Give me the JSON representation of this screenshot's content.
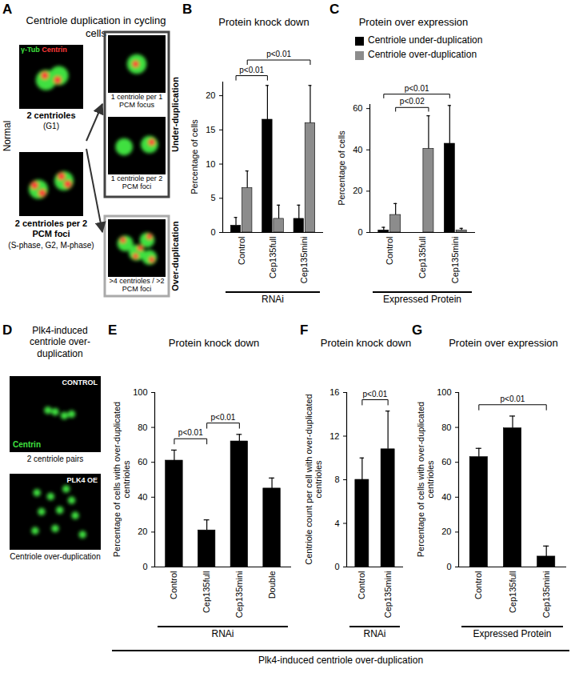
{
  "figure": {
    "panel_A": {
      "letter": "A",
      "title": "Centriole duplication in cycling cells",
      "stain_labels": [
        {
          "text": "γ-Tub",
          "color": "#3fe03f"
        },
        {
          "text": "Centrin",
          "color": "#ff3a3a"
        }
      ],
      "normal_label": "Normal",
      "normal_images": [
        {
          "caption": "2 centrioles",
          "phase": "(G1)"
        },
        {
          "caption": "2 centrioles per 2 PCM foci",
          "phase": "(S-phase, G2, M-phase)"
        }
      ],
      "under_label": "Under-duplication",
      "under_images": [
        "1 centriole per 1 PCM focus",
        "1 centriole per 2 PCM foci"
      ],
      "over_label": "Over-duplication",
      "over_images": [
        ">4 centrioles / >2 PCM foci"
      ]
    },
    "panel_D": {
      "letter": "D",
      "title": "Plk4-induced centriole over-duplication",
      "stain_label": {
        "text": "Centrin",
        "color": "#3fe03f"
      },
      "images": [
        {
          "tag": "CONTROL",
          "caption": "2 centriole pairs"
        },
        {
          "tag": "PLK4 OE",
          "caption": "Centriole over-duplication"
        }
      ]
    },
    "bottom_label": "Plk4-induced centriole over-duplication"
  },
  "chart_data": [
    {
      "panel": "B",
      "type": "bar",
      "title": "Protein knock down",
      "ylabel": "Percentage of cells",
      "group_label": "RNAi",
      "categories": [
        "Control",
        "Cep135full",
        "Cep135mini"
      ],
      "series": [
        {
          "name": "Centriole under-duplication",
          "color": "#000000",
          "values": [
            1,
            16.5,
            2
          ],
          "errors": [
            1.2,
            5,
            2
          ]
        },
        {
          "name": "Centriole over-duplication",
          "color": "#8c8c8c",
          "values": [
            6.5,
            2,
            16
          ],
          "errors": [
            2.5,
            2,
            5.5
          ]
        }
      ],
      "ylim": [
        0,
        22
      ],
      "yticks": [
        0,
        5,
        10,
        15,
        20
      ],
      "annotations": [
        {
          "label": "p<0.01",
          "from": "Control",
          "to": "Cep135full",
          "series": "Centriole under-duplication"
        },
        {
          "label": "p<0.01",
          "from": "Control",
          "to": "Cep135mini",
          "series": "Centriole over-duplication"
        }
      ]
    },
    {
      "panel": "C",
      "type": "bar",
      "title": "Protein over expression",
      "ylabel": "Percentage of cells",
      "group_label": "Expressed Protein",
      "categories": [
        "Control",
        "Cep135full",
        "Cep135mini"
      ],
      "series": [
        {
          "name": "Centriole under-duplication",
          "color": "#000000",
          "values": [
            1,
            0,
            43
          ],
          "errors": [
            1.5,
            0,
            18.5
          ]
        },
        {
          "name": "Centriole over-duplication",
          "color": "#8c8c8c",
          "values": [
            8.5,
            40.5,
            1
          ],
          "errors": [
            5.5,
            16,
            1
          ]
        }
      ],
      "ylim": [
        0,
        62
      ],
      "yticks": [
        0,
        20,
        40,
        60
      ],
      "legend": "top-right",
      "annotations": [
        {
          "label": "p<0.02",
          "from": "Control",
          "to": "Cep135full",
          "series": "Centriole over-duplication"
        },
        {
          "label": "p<0.01",
          "from": "Control",
          "to": "Cep135mini",
          "series": "Centriole under-duplication"
        }
      ]
    },
    {
      "panel": "E",
      "type": "bar",
      "title": "Protein knock down",
      "ylabel": "Percentage of cells with over-duplicated centrioles",
      "group_label": "RNAi",
      "categories": [
        "Control",
        "Cep135full",
        "Cep135mini",
        "Double"
      ],
      "values": [
        61,
        21,
        72,
        45
      ],
      "errors": [
        6,
        6,
        4,
        6
      ],
      "color": "#000000",
      "ylim": [
        0,
        100
      ],
      "yticks": [
        0,
        20,
        40,
        60,
        80,
        100
      ],
      "annotations": [
        {
          "label": "p<0.01",
          "from": "Control",
          "to": "Cep135full"
        },
        {
          "label": "p<0.01",
          "from": "Cep135full",
          "to": "Cep135mini"
        }
      ]
    },
    {
      "panel": "F",
      "type": "bar",
      "title": "Protein knock down",
      "ylabel": "Centriole count per cell with over-duplicated centrioles",
      "group_label": "RNAi",
      "categories": [
        "Control",
        "Cep135mini"
      ],
      "values": [
        8,
        10.8
      ],
      "errors": [
        2,
        3.5
      ],
      "color": "#000000",
      "ylim": [
        0,
        16
      ],
      "yticks": [
        0,
        4,
        8,
        12,
        16
      ],
      "annotations": [
        {
          "label": "p<0.01",
          "from": "Control",
          "to": "Cep135mini"
        }
      ]
    },
    {
      "panel": "G",
      "type": "bar",
      "title": "Protein over expression",
      "ylabel": "Percentage of cells with over-duplicated centrioles",
      "group_label": "Expressed Protein",
      "categories": [
        "Control",
        "Cep135full",
        "Cep135mini"
      ],
      "values": [
        63,
        79.5,
        6
      ],
      "errors": [
        5,
        7,
        6
      ],
      "color": "#000000",
      "ylim": [
        0,
        100
      ],
      "yticks": [
        0,
        20,
        40,
        60,
        80,
        100
      ],
      "annotations": [
        {
          "label": "p<0.01",
          "from": "Control",
          "to": "Cep135mini"
        }
      ]
    }
  ]
}
